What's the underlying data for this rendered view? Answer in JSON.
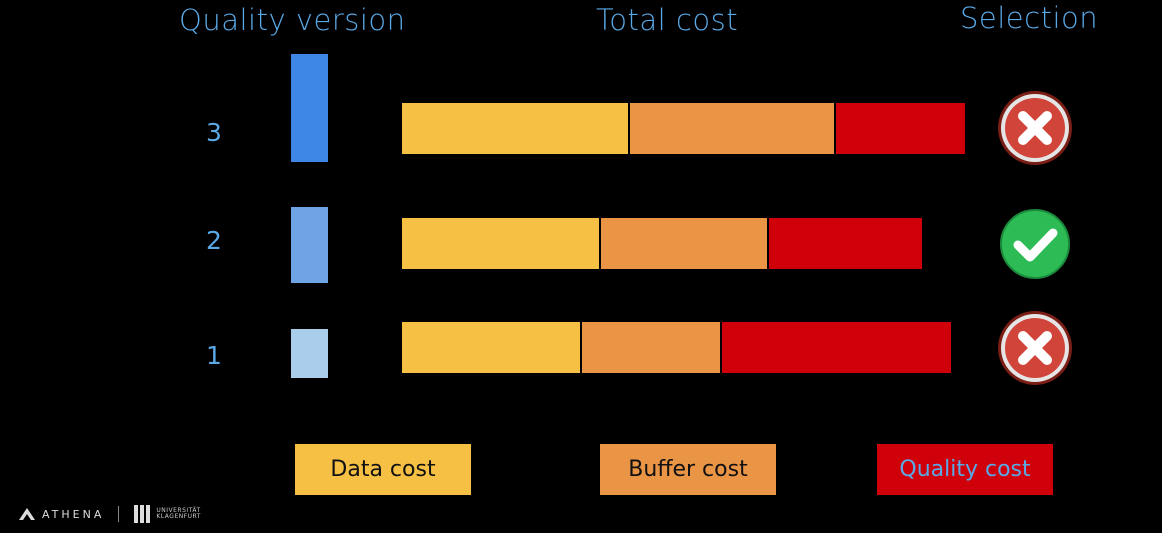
{
  "headers": {
    "quality_version": "Quality version",
    "total_cost": "Total cost",
    "selection": "Selection"
  },
  "rows": [
    {
      "level": "3",
      "quality": 1.0,
      "data_cost": 226,
      "buffer_cost": 204,
      "quality_cost": 129,
      "selected": false
    },
    {
      "level": "2",
      "quality": 0.7,
      "data_cost": 197,
      "buffer_cost": 166,
      "quality_cost": 153,
      "selected": true
    },
    {
      "level": "1",
      "quality": 0.45,
      "data_cost": 178,
      "buffer_cost": 138,
      "quality_cost": 229,
      "selected": false
    }
  ],
  "legend": {
    "data_cost": "Data cost",
    "buffer_cost": "Buffer cost",
    "quality_cost": "Quality cost"
  },
  "colors": {
    "data_cost": "#f5c043",
    "buffer_cost": "#ea9446",
    "quality_cost": "#d0000a",
    "quality_bars": [
      "#3d86e6",
      "#6ea4e6",
      "#a9cdea"
    ],
    "reject": "#d0443a",
    "accept": "#2cbb55"
  },
  "icons": {
    "reject": "x-circle-icon",
    "accept": "check-circle-icon",
    "logo": "athena-logo-icon"
  },
  "footer": {
    "brand": "ATHENA",
    "university": "UNIVERSITÄT KLAGENFURT"
  }
}
